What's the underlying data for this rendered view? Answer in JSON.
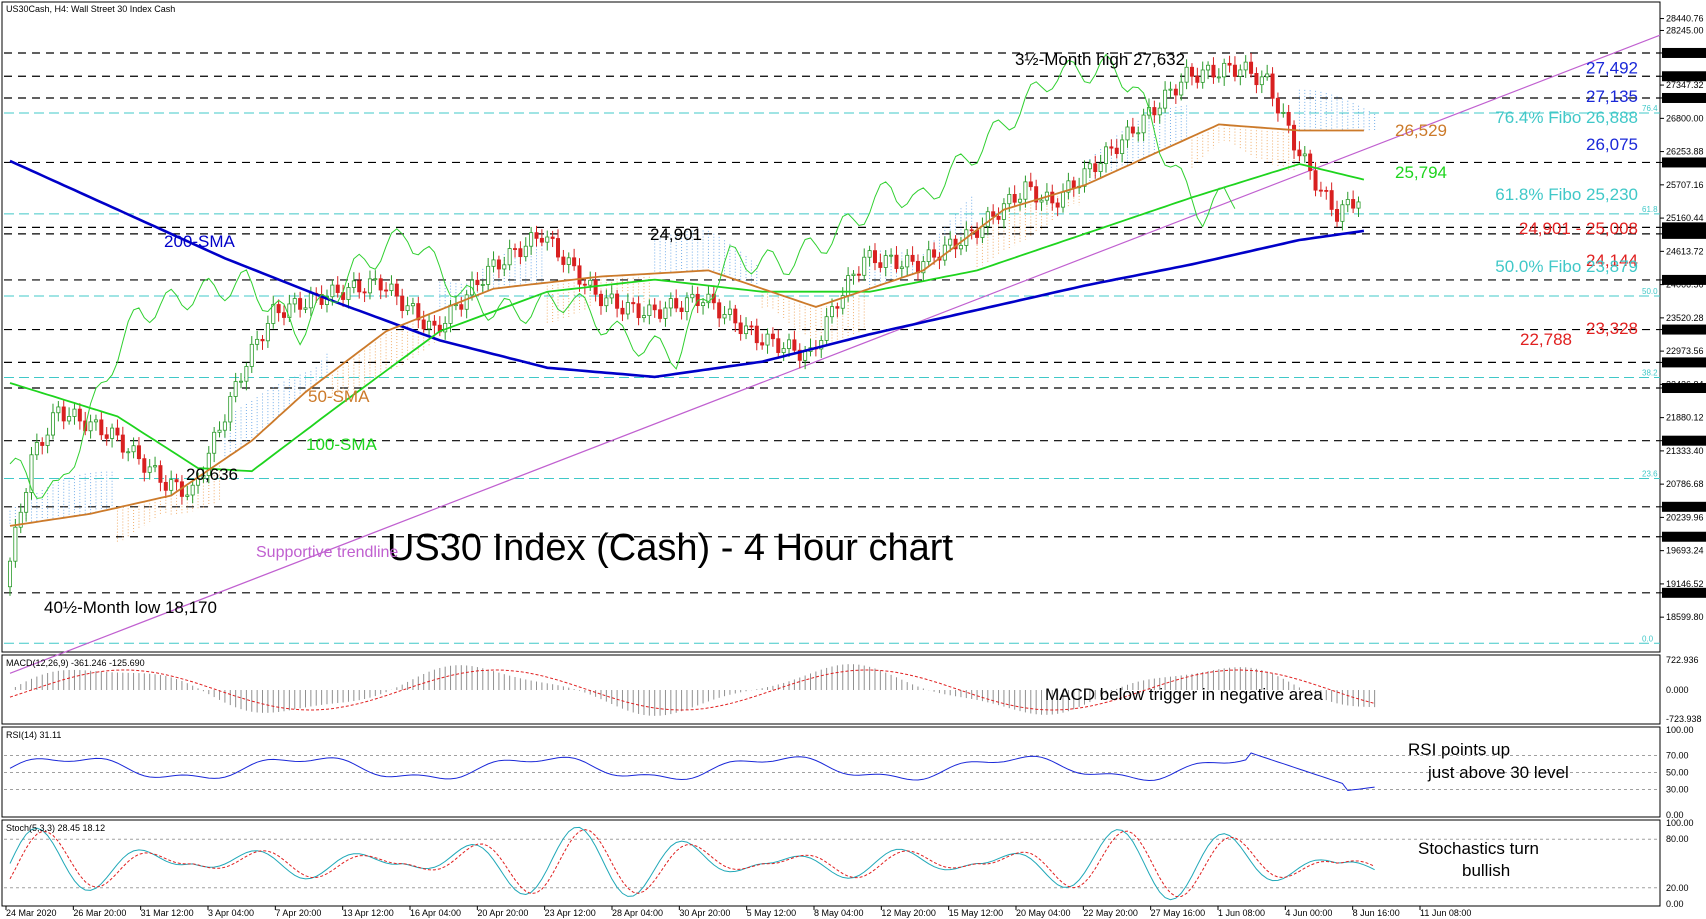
{
  "chart_data": {
    "type": "line",
    "symbol_header": "US30Cash, H4:  Wall Street 30 Index Cash",
    "title": "US30 Index (Cash) - 4 Hour chart",
    "xlabel": "",
    "ylabel": "",
    "ylim": [
      18060,
      28680
    ],
    "grid": false,
    "x_ticks": [
      "24 Mar 2020",
      "26 Mar 20:00",
      "31 Mar 12:00",
      "3 Apr 04:00",
      "7 Apr 20:00",
      "13 Apr 12:00",
      "16 Apr 04:00",
      "20 Apr 20:00",
      "23 Apr 12:00",
      "28 Apr 04:00",
      "30 Apr 20:00",
      "5 May 12:00",
      "8 May 04:00",
      "12 May 20:00",
      "15 May 12:00",
      "20 May 04:00",
      "22 May 20:00",
      "27 May 16:00",
      "1 Jun 08:00",
      "4 Jun 00:00",
      "8 Jun 16:00",
      "11 Jun 08:00"
    ],
    "price_axis_labels": [
      "28440.76",
      "28245.00",
      "27875.00",
      "27492.00",
      "27347.32",
      "27135.00",
      "26800.00",
      "26253.88",
      "26075.00",
      "25707.16",
      "25160.44",
      "25008.00",
      "24901.00",
      "24613.72",
      "24144.00",
      "24066.56",
      "23520.28",
      "23328.00",
      "22973.56",
      "22788.00",
      "22426.84",
      "22367.00",
      "21880.12",
      "21501.00",
      "21333.40",
      "20786.68",
      "20414.00",
      "20239.96",
      "19922.00",
      "19693.24",
      "19146.52",
      "19000.00",
      "18599.80"
    ],
    "horizontal_levels": [
      {
        "value": 27875,
        "label": ""
      },
      {
        "value": 27492,
        "label": "27,492"
      },
      {
        "value": 27135,
        "label": "27,135"
      },
      {
        "value": 26075,
        "label": "26,075"
      },
      {
        "value": 25008,
        "label": "24,901 - 25,008"
      },
      {
        "value": 24901,
        "label": ""
      },
      {
        "value": 24144,
        "label": "24,144"
      },
      {
        "value": 23328,
        "label": "23,328"
      },
      {
        "value": 22788,
        "label": "22,788"
      },
      {
        "value": 22367,
        "label": ""
      },
      {
        "value": 21501,
        "label": ""
      },
      {
        "value": 20414,
        "label": ""
      },
      {
        "value": 19922,
        "label": ""
      },
      {
        "value": 19000,
        "label": ""
      }
    ],
    "fibo_levels": [
      {
        "value": 26888,
        "label": "76.4% Fibo 26,888",
        "short": "76.4"
      },
      {
        "value": 25230,
        "label": "61.8% Fibo 25,230",
        "short": "61.8"
      },
      {
        "value": 23879,
        "label": "50.0% Fibo 23,879",
        "short": "50.0"
      },
      {
        "value": 22540,
        "label": "",
        "short": "38.2"
      },
      {
        "value": 20880,
        "label": "",
        "short": "23.6"
      },
      {
        "value": 18170,
        "label": "",
        "short": "0.0"
      }
    ],
    "annotations": {
      "high": "3½-Month high 27,632",
      "low": "40½-Month low 18,170",
      "peak_24901": "24,901",
      "low_20636": "20,636",
      "sma200": "200-SMA",
      "sma50": "50-SMA",
      "sma100": "100-SMA",
      "trendline": "Supportive trendline",
      "cloud_26529": "26,529",
      "sma_25794": "25,794"
    },
    "series": [
      {
        "name": "200-SMA",
        "x": [
          0,
          20,
          40,
          60,
          80,
          100,
          120,
          140,
          160,
          180,
          200,
          220,
          240,
          252
        ],
        "values": [
          26100,
          25300,
          24500,
          23800,
          23150,
          22700,
          22550,
          22800,
          23250,
          23650,
          24050,
          24400,
          24800,
          24950
        ]
      },
      {
        "name": "100-SMA",
        "x": [
          0,
          20,
          35,
          45,
          60,
          80,
          100,
          120,
          140,
          160,
          180,
          200,
          220,
          240,
          252
        ],
        "values": [
          22450,
          21900,
          21050,
          21000,
          22000,
          23300,
          23950,
          24150,
          23950,
          23950,
          24300,
          24900,
          25500,
          26050,
          25794
        ]
      },
      {
        "name": "50-SMA",
        "x": [
          0,
          15,
          30,
          45,
          55,
          70,
          90,
          110,
          130,
          150,
          170,
          185,
          200,
          210,
          225,
          240,
          252
        ],
        "values": [
          20100,
          20300,
          20600,
          21500,
          22300,
          23300,
          24000,
          24200,
          24300,
          23700,
          24300,
          25300,
          25700,
          26100,
          26700,
          26600,
          26600
        ]
      }
    ],
    "price_path": {
      "x": [
        0,
        5,
        10,
        20,
        30,
        35,
        45,
        50,
        60,
        70,
        80,
        90,
        100,
        110,
        115,
        120,
        130,
        140,
        150,
        155,
        160,
        170,
        180,
        190,
        195,
        200,
        210,
        220,
        230,
        235,
        240,
        245,
        248,
        252
      ],
      "values": [
        19100,
        21200,
        22000,
        21600,
        20800,
        20636,
        22800,
        23600,
        23900,
        24100,
        23300,
        24300,
        24901,
        23900,
        23700,
        23600,
        23850,
        23200,
        22900,
        23800,
        24500,
        24400,
        24900,
        25650,
        25400,
        25800,
        26600,
        27500,
        27632,
        27400,
        26400,
        25600,
        25230,
        25500
      ]
    },
    "trendline_points": {
      "x": [
        0,
        252
      ],
      "values": [
        18170,
        25130
      ]
    },
    "panels": [
      {
        "name": "MACD",
        "label": "MACD(12,26,9) -361.246 -125.690",
        "axis": [
          "722.936",
          "0.000",
          "-723.938"
        ],
        "note": "MACD below trigger in negative area"
      },
      {
        "name": "RSI",
        "label": "RSI(14) 31.11",
        "axis": [
          "100.00",
          "70.00",
          "50.00",
          "30.00",
          "0.00"
        ],
        "note_1": "RSI points up",
        "note_2": "just above 30 level"
      },
      {
        "name": "Stoch",
        "label": "Stoch(5,3,3) 28.45 18.12",
        "axis": [
          "100.00",
          "80.00",
          "20.00",
          "0.00"
        ],
        "note_1": "Stochastics turn",
        "note_2": "bullish"
      }
    ],
    "colors": {
      "sma200": "#0000c8",
      "sma100": "#1ed41e",
      "sma50": "#cc7a2a",
      "trendline": "#c060d0",
      "fibo": "#40c8c8",
      "level": "#000000",
      "candle_up": "#2a9a2a",
      "candle_down": "#d82020",
      "red_level": "#e02020",
      "blue_level": "#1a28d8"
    }
  }
}
